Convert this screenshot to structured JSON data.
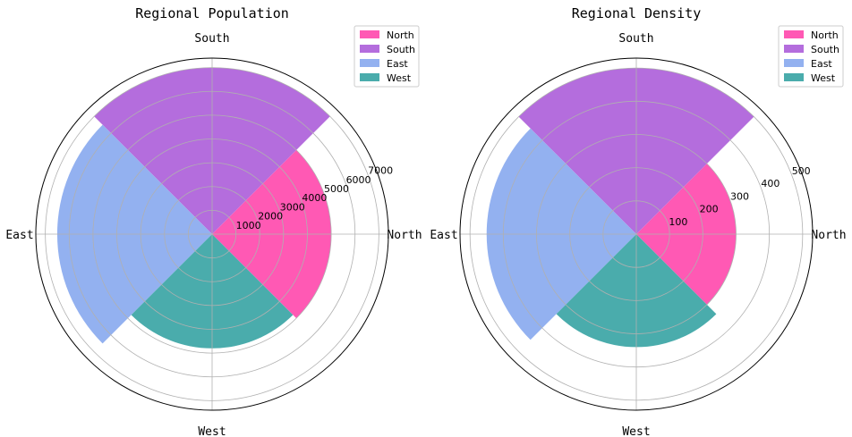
{
  "chart_data": [
    {
      "type": "polar-bar",
      "title": "Regional Population",
      "categories": [
        "North",
        "South",
        "East",
        "West"
      ],
      "angles_deg": [
        0,
        90,
        180,
        270
      ],
      "values": [
        5000,
        7000,
        6500,
        4800
      ],
      "colors": [
        "#ff59b4",
        "#b46ddd",
        "#93b1f0",
        "#4aacac"
      ],
      "rlim": [
        0,
        7400
      ],
      "rticks": [
        1000,
        2000,
        3000,
        4000,
        5000,
        6000,
        7000
      ],
      "rticks_labels": [
        "1000",
        "2000",
        "3000",
        "4000",
        "5000",
        "6000",
        "7000"
      ],
      "theta_labels": [
        "North",
        "South",
        "East",
        "West"
      ],
      "grid": true,
      "legend": [
        "North",
        "South",
        "East",
        "West"
      ],
      "legend_position": "top-right"
    },
    {
      "type": "polar-bar",
      "title": "Regional Density",
      "categories": [
        "North",
        "South",
        "East",
        "West"
      ],
      "angles_deg": [
        0,
        90,
        180,
        270
      ],
      "values": [
        300,
        500,
        450,
        340
      ],
      "colors": [
        "#ff59b4",
        "#b46ddd",
        "#93b1f0",
        "#4aacac"
      ],
      "rlim": [
        0,
        530
      ],
      "rticks": [
        100,
        200,
        300,
        400,
        500
      ],
      "rticks_labels": [
        "100",
        "200",
        "300",
        "400",
        "500"
      ],
      "theta_labels": [
        "North",
        "South",
        "East",
        "West"
      ],
      "grid": true,
      "legend": [
        "North",
        "South",
        "East",
        "West"
      ],
      "legend_position": "top-right"
    }
  ]
}
